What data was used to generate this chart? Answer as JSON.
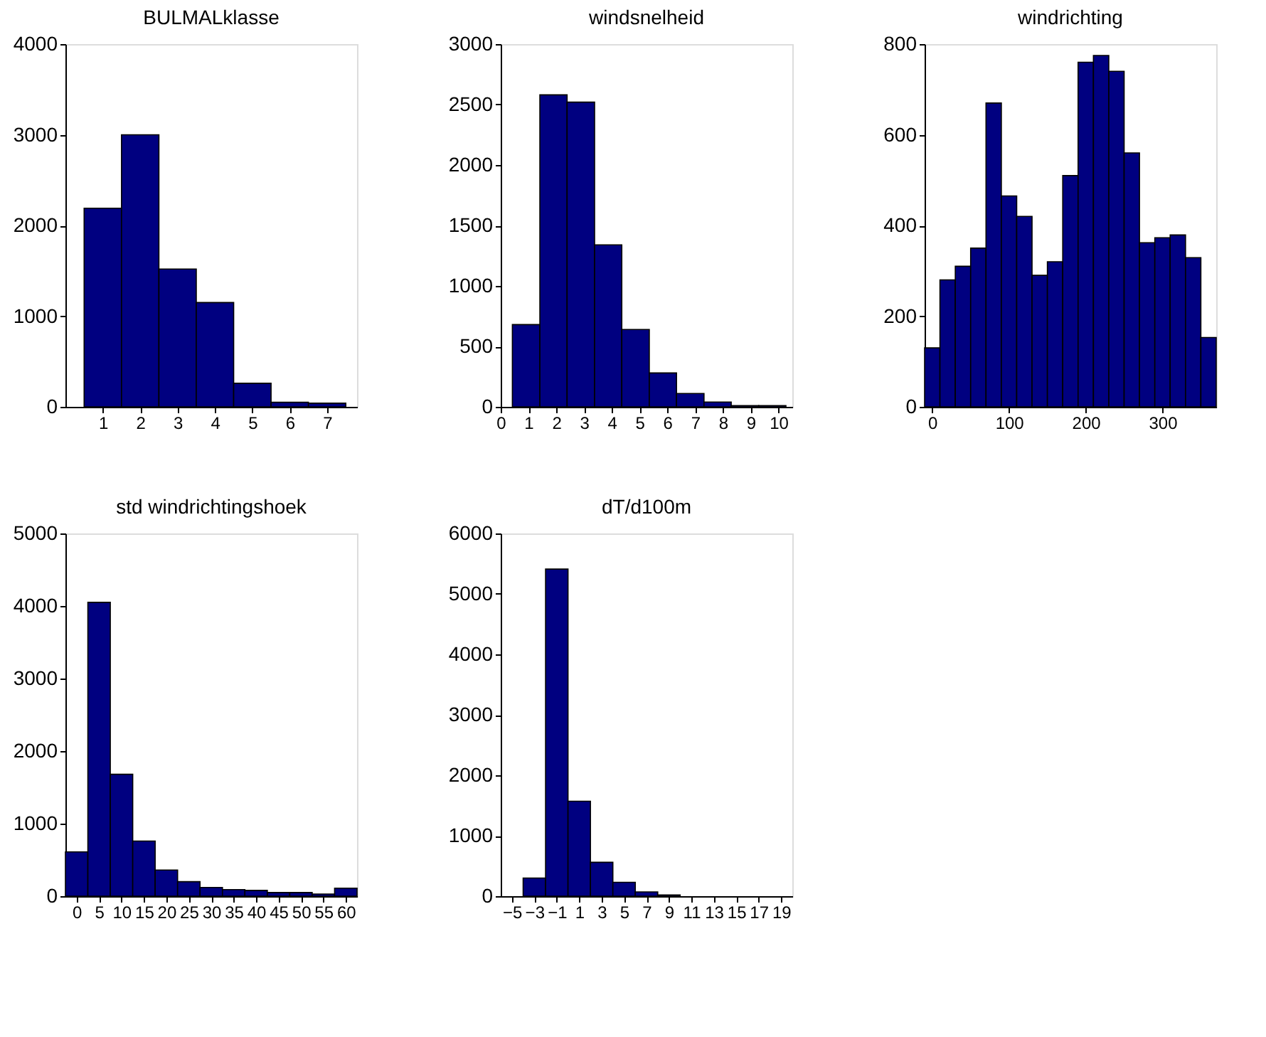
{
  "chart_data": [
    {
      "type": "histogram",
      "title": "BULMALklasse",
      "bins": [
        0.5,
        1.5,
        2.5,
        3.5,
        4.5,
        5.5,
        6.5,
        7.5
      ],
      "values": [
        2190,
        3000,
        1520,
        1150,
        260,
        50,
        40
      ],
      "color": "#000080",
      "xlim": [
        0,
        7.8
      ],
      "xticks": [
        1,
        2,
        3,
        4,
        5,
        6,
        7
      ],
      "ylim": [
        0,
        4000
      ],
      "yticks": [
        0,
        1000,
        2000,
        3000,
        4000
      ],
      "grid": false
    },
    {
      "type": "histogram",
      "title": "windsnelheid",
      "bins": [
        0.42,
        1.41,
        2.39,
        3.38,
        4.36,
        5.35,
        6.33,
        7.32,
        8.3,
        9.29,
        10.27
      ],
      "values": [
        680,
        2580,
        2520,
        1340,
        640,
        280,
        110,
        40,
        10,
        10
      ],
      "color": "#000080",
      "xlim": [
        0,
        10.5
      ],
      "xticks": [
        0,
        1,
        2,
        3,
        4,
        5,
        6,
        7,
        8,
        9,
        10
      ],
      "ylim": [
        0,
        3000
      ],
      "yticks": [
        0,
        500,
        1000,
        1500,
        2000,
        2500,
        3000
      ],
      "grid": false
    },
    {
      "type": "histogram",
      "title": "windrichting",
      "bins": [
        -10,
        10,
        30,
        50,
        70,
        90,
        110,
        130,
        150,
        170,
        190,
        210,
        230,
        250,
        270,
        290,
        310,
        330,
        350,
        370
      ],
      "values": [
        130,
        280,
        310,
        350,
        670,
        465,
        420,
        290,
        320,
        510,
        760,
        775,
        740,
        560,
        362,
        373,
        379,
        329,
        153
      ],
      "color": "#000080",
      "xlim": [
        -10,
        370
      ],
      "xticks": [
        0,
        100,
        200,
        300
      ],
      "ylim": [
        0,
        800
      ],
      "yticks": [
        0,
        200,
        400,
        600,
        800
      ],
      "grid": false
    },
    {
      "type": "histogram",
      "title": "std windrichtingshoek",
      "bins": [
        -2.5,
        2.5,
        7.5,
        12.5,
        17.5,
        22.5,
        27.5,
        32.5,
        37.5,
        42.5,
        47.5,
        52.5,
        57.5,
        62.5
      ],
      "values": [
        610,
        4050,
        1680,
        760,
        360,
        200,
        120,
        90,
        80,
        50,
        50,
        30,
        110
      ],
      "color": "#000080",
      "xlim": [
        -2.5,
        62.5
      ],
      "xticks": [
        0,
        5,
        10,
        15,
        20,
        25,
        30,
        35,
        40,
        45,
        50,
        55,
        60
      ],
      "ylim": [
        0,
        5000
      ],
      "yticks": [
        0,
        1000,
        2000,
        3000,
        4000,
        5000
      ],
      "grid": false
    },
    {
      "type": "histogram",
      "title": "dT/d100m",
      "bins": [
        -4,
        -2,
        0,
        2,
        4,
        6,
        8,
        10
      ],
      "values": [
        300,
        5410,
        1570,
        560,
        230,
        70,
        20
      ],
      "color": "#000080",
      "xlim": [
        -6,
        20
      ],
      "xticks": [
        -5,
        -3,
        -1,
        1,
        3,
        5,
        7,
        9,
        11,
        13,
        15,
        17,
        19
      ],
      "ylim": [
        0,
        6000
      ],
      "yticks": [
        0,
        1000,
        2000,
        3000,
        4000,
        5000,
        6000
      ],
      "grid": false
    }
  ]
}
